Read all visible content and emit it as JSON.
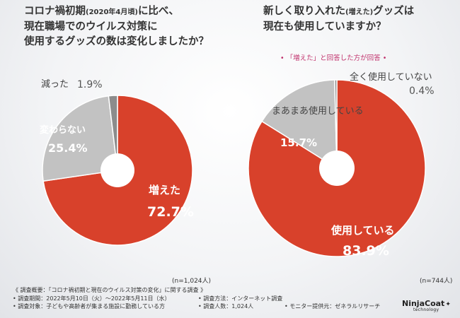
{
  "titles": {
    "left_line1_a": "コロナ禍初期",
    "left_line1_small": "(2020年4月頃)",
    "left_line1_b": "に比べ、",
    "left_line2": "現在職場でのウイルス対策に",
    "left_line3": "使用するグッズの数は変化しましたか？",
    "right_line1_a": "新しく取り入れた",
    "right_line1_small": "(増えた)",
    "right_line1_b": "グッズは",
    "right_line2": "現在も使用していますか？"
  },
  "note": "「増えた」と回答した方が回答",
  "chart_data": [
    {
      "type": "pie",
      "title": "コロナ禍初期(2020年4月頃)に比べ、現在職場でのウイルス対策に使用するグッズの数は変化しましたか？",
      "n_label": "(n=1,024人)",
      "slices": [
        {
          "label": "増えた",
          "value": 72.7,
          "display": "72.7%",
          "color": "#d8412b"
        },
        {
          "label": "変わらない",
          "value": 25.4,
          "display": "25.4%",
          "color": "#c2c2c2"
        },
        {
          "label": "減った",
          "value": 1.9,
          "display": "1.9%",
          "color": "#8c8c8c"
        }
      ]
    },
    {
      "type": "pie",
      "title": "新しく取り入れた(増えた)グッズは現在も使用していますか？",
      "n_label": "(n=744人)",
      "slices": [
        {
          "label": "使用している",
          "value": 83.9,
          "display": "83.9%",
          "color": "#d8412b"
        },
        {
          "label": "まあまあ使用している",
          "value": 15.7,
          "display": "15.7%",
          "color": "#c2c2c2"
        },
        {
          "label": "全く使用していない",
          "value": 0.4,
          "display": "0.4%",
          "color": "#8c8c8c"
        }
      ]
    }
  ],
  "footer": {
    "line1": "《 調査概要：「コロナ禍初期と現在のウイルス対策の変化」に関する調査 》",
    "period": "• 調査期間：2022年5月10日（火）～2022年5月11日（水）",
    "method": "• 調査方法：インターネット調査",
    "target": "• 調査対象：子どもや高齢者が集まる施設に勤務している方",
    "count": "• 調査人数：1,024人",
    "provider": "• モニター提供元：ゼネラルリサーチ"
  },
  "logo": {
    "name": "NinjaCoat",
    "tagline": "technology"
  }
}
